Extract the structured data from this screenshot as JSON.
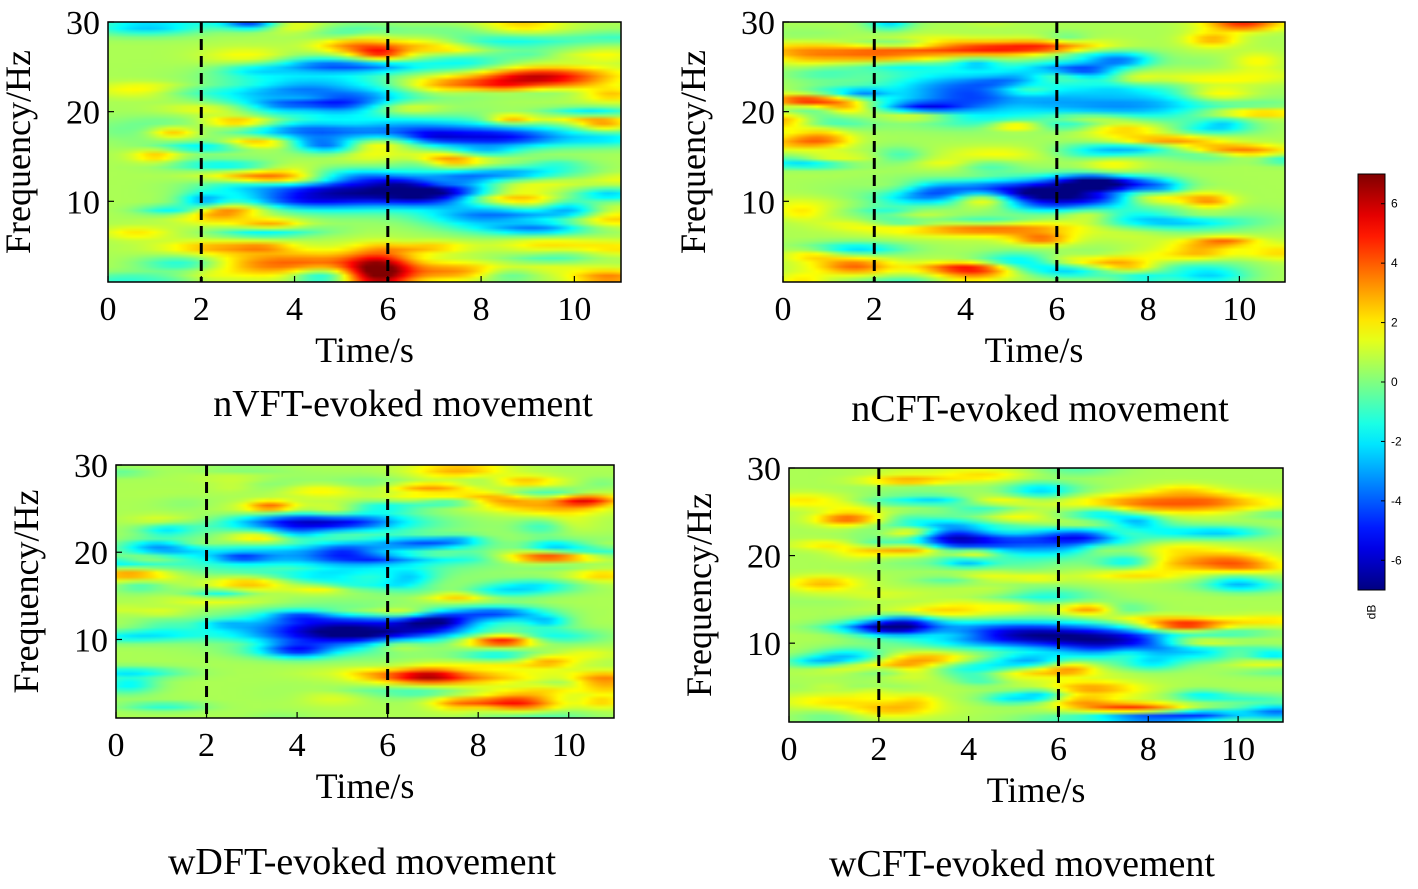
{
  "chart_data": [
    {
      "type": "heatmap",
      "caption": "nVFT-evoked movement",
      "xlabel": "Time/s",
      "ylabel": "Frequency/Hz",
      "xlim": [
        0,
        11
      ],
      "ylim": [
        1,
        30
      ],
      "xticks": [
        0,
        2,
        4,
        6,
        8,
        10
      ],
      "yticks": [
        10,
        20,
        30
      ],
      "markers": [
        2,
        6
      ],
      "features": [
        {
          "t": 5.0,
          "f": 11,
          "st": 1.4,
          "sf": 1.3,
          "v": -7
        },
        {
          "t": 7.0,
          "f": 11,
          "st": 0.8,
          "sf": 1.0,
          "v": -6
        },
        {
          "t": 5.0,
          "f": 18,
          "st": 2.5,
          "sf": 1.0,
          "v": -5
        },
        {
          "t": 8.5,
          "f": 17,
          "st": 1.2,
          "sf": 0.8,
          "v": -5
        },
        {
          "t": 4.5,
          "f": 22,
          "st": 1.5,
          "sf": 1.5,
          "v": -5
        },
        {
          "t": 5.8,
          "f": 2,
          "st": 0.5,
          "sf": 1.5,
          "v": 6
        },
        {
          "t": 4.0,
          "f": 3,
          "st": 1.5,
          "sf": 1.0,
          "v": 3.5
        },
        {
          "t": 9.5,
          "f": 24,
          "st": 1.0,
          "sf": 0.7,
          "v": 4
        },
        {
          "t": 7.5,
          "f": 23,
          "st": 1.0,
          "sf": 0.7,
          "v": 3.5
        },
        {
          "t": 8.5,
          "f": 8,
          "st": 1.0,
          "sf": 1.0,
          "v": -4
        }
      ],
      "noise_seed": 11
    },
    {
      "type": "heatmap",
      "caption": "nCFT-evoked movement",
      "xlabel": "Time/s",
      "ylabel": "Frequency/Hz",
      "xlim": [
        0,
        11
      ],
      "ylim": [
        1,
        30
      ],
      "xticks": [
        0,
        2,
        4,
        6,
        8,
        10
      ],
      "yticks": [
        10,
        20,
        30
      ],
      "markers": [
        2,
        6
      ],
      "features": [
        {
          "t": 5.0,
          "f": 11,
          "st": 1.6,
          "sf": 1.0,
          "v": -7
        },
        {
          "t": 7.0,
          "f": 11.5,
          "st": 0.8,
          "sf": 1.0,
          "v": -6
        },
        {
          "t": 4.0,
          "f": 22,
          "st": 1.3,
          "sf": 1.8,
          "v": -5
        },
        {
          "t": 7.5,
          "f": 21,
          "st": 1.5,
          "sf": 1.5,
          "v": -4
        },
        {
          "t": 4.5,
          "f": 27,
          "st": 1.0,
          "sf": 0.6,
          "v": 4
        },
        {
          "t": 4.5,
          "f": 7,
          "st": 1.5,
          "sf": 0.6,
          "v": 3.5
        },
        {
          "t": 9.5,
          "f": 4,
          "st": 1.0,
          "sf": 0.6,
          "v": 3.5
        },
        {
          "t": 8.5,
          "f": 8,
          "st": 1.2,
          "sf": 0.8,
          "v": -4
        }
      ],
      "noise_seed": 23
    },
    {
      "type": "heatmap",
      "caption": "wDFT-evoked movement",
      "xlabel": "Time/s",
      "ylabel": "Frequency/Hz",
      "xlim": [
        0,
        11
      ],
      "ylim": [
        1,
        30
      ],
      "xticks": [
        0,
        2,
        4,
        6,
        8,
        10
      ],
      "yticks": [
        10,
        20,
        30
      ],
      "markers": [
        2,
        6
      ],
      "features": [
        {
          "t": 5.0,
          "f": 11,
          "st": 1.6,
          "sf": 1.4,
          "v": -7.5
        },
        {
          "t": 7.0,
          "f": 12,
          "st": 0.6,
          "sf": 0.7,
          "v": -6
        },
        {
          "t": 4.5,
          "f": 23.5,
          "st": 1.3,
          "sf": 0.7,
          "v": -6
        },
        {
          "t": 4.5,
          "f": 20,
          "st": 2.0,
          "sf": 2.0,
          "v": -4
        },
        {
          "t": 8.5,
          "f": 26,
          "st": 0.8,
          "sf": 0.6,
          "v": 4
        },
        {
          "t": 9.0,
          "f": 3,
          "st": 0.6,
          "sf": 1.0,
          "v": 4
        }
      ],
      "noise_seed": 37
    },
    {
      "type": "heatmap",
      "caption": "wCFT-evoked movement",
      "xlabel": "Time/s",
      "ylabel": "Frequency/Hz",
      "xlim": [
        0,
        11
      ],
      "ylim": [
        1,
        30
      ],
      "xticks": [
        0,
        2,
        4,
        6,
        8,
        10
      ],
      "yticks": [
        10,
        20,
        30
      ],
      "markers": [
        2,
        6
      ],
      "features": [
        {
          "t": 5.0,
          "f": 11,
          "st": 1.5,
          "sf": 1.0,
          "v": -7
        },
        {
          "t": 7.5,
          "f": 10,
          "st": 1.2,
          "sf": 1.2,
          "v": -6
        },
        {
          "t": 5.5,
          "f": 22,
          "st": 1.5,
          "sf": 1.5,
          "v": -5
        },
        {
          "t": 10.0,
          "f": 9,
          "st": 0.7,
          "sf": 1.0,
          "v": -4
        },
        {
          "t": 8.5,
          "f": 26,
          "st": 1.5,
          "sf": 0.8,
          "v": 3.5
        },
        {
          "t": 9.0,
          "f": 12,
          "st": 0.8,
          "sf": 0.5,
          "v": 3.5
        }
      ],
      "noise_seed": 53
    }
  ],
  "colorbar": {
    "label": "dB",
    "min": -7,
    "max": 7,
    "ticks": [
      6,
      4,
      2,
      0,
      -2,
      -4,
      -6
    ],
    "colormap": "jet"
  },
  "colors": {
    "marker_line": "#000000",
    "axis": "#000000"
  }
}
